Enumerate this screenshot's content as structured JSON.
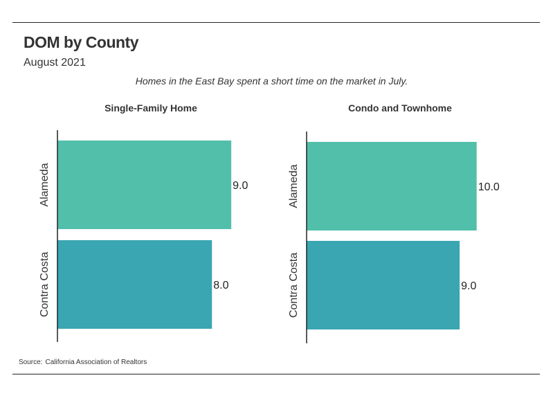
{
  "header": {
    "title": "DOM by County",
    "subtitle": "August 2021",
    "caption": "Homes in the East Bay spent a short time on the market in July."
  },
  "footer": {
    "source_label": "Source:",
    "source_text": "California Association of Realtors"
  },
  "colors": {
    "alameda": "#52bfab",
    "contra_costa": "#3aa6b2"
  },
  "chart_data": [
    {
      "type": "bar",
      "orientation": "horizontal",
      "title": "Single-Family Home",
      "categories": [
        "Alameda",
        "Contra Costa"
      ],
      "values": [
        9.0,
        8.0
      ],
      "value_labels": [
        "9.0",
        "8.0"
      ],
      "xlim": [
        0,
        10.5
      ],
      "grid": false
    },
    {
      "type": "bar",
      "orientation": "horizontal",
      "title": "Condo and Townhome",
      "categories": [
        "Alameda",
        "Contra Costa"
      ],
      "values": [
        10.0,
        9.0
      ],
      "value_labels": [
        "10.0",
        "9.0"
      ],
      "xlim": [
        0,
        11.6
      ],
      "grid": false
    }
  ]
}
